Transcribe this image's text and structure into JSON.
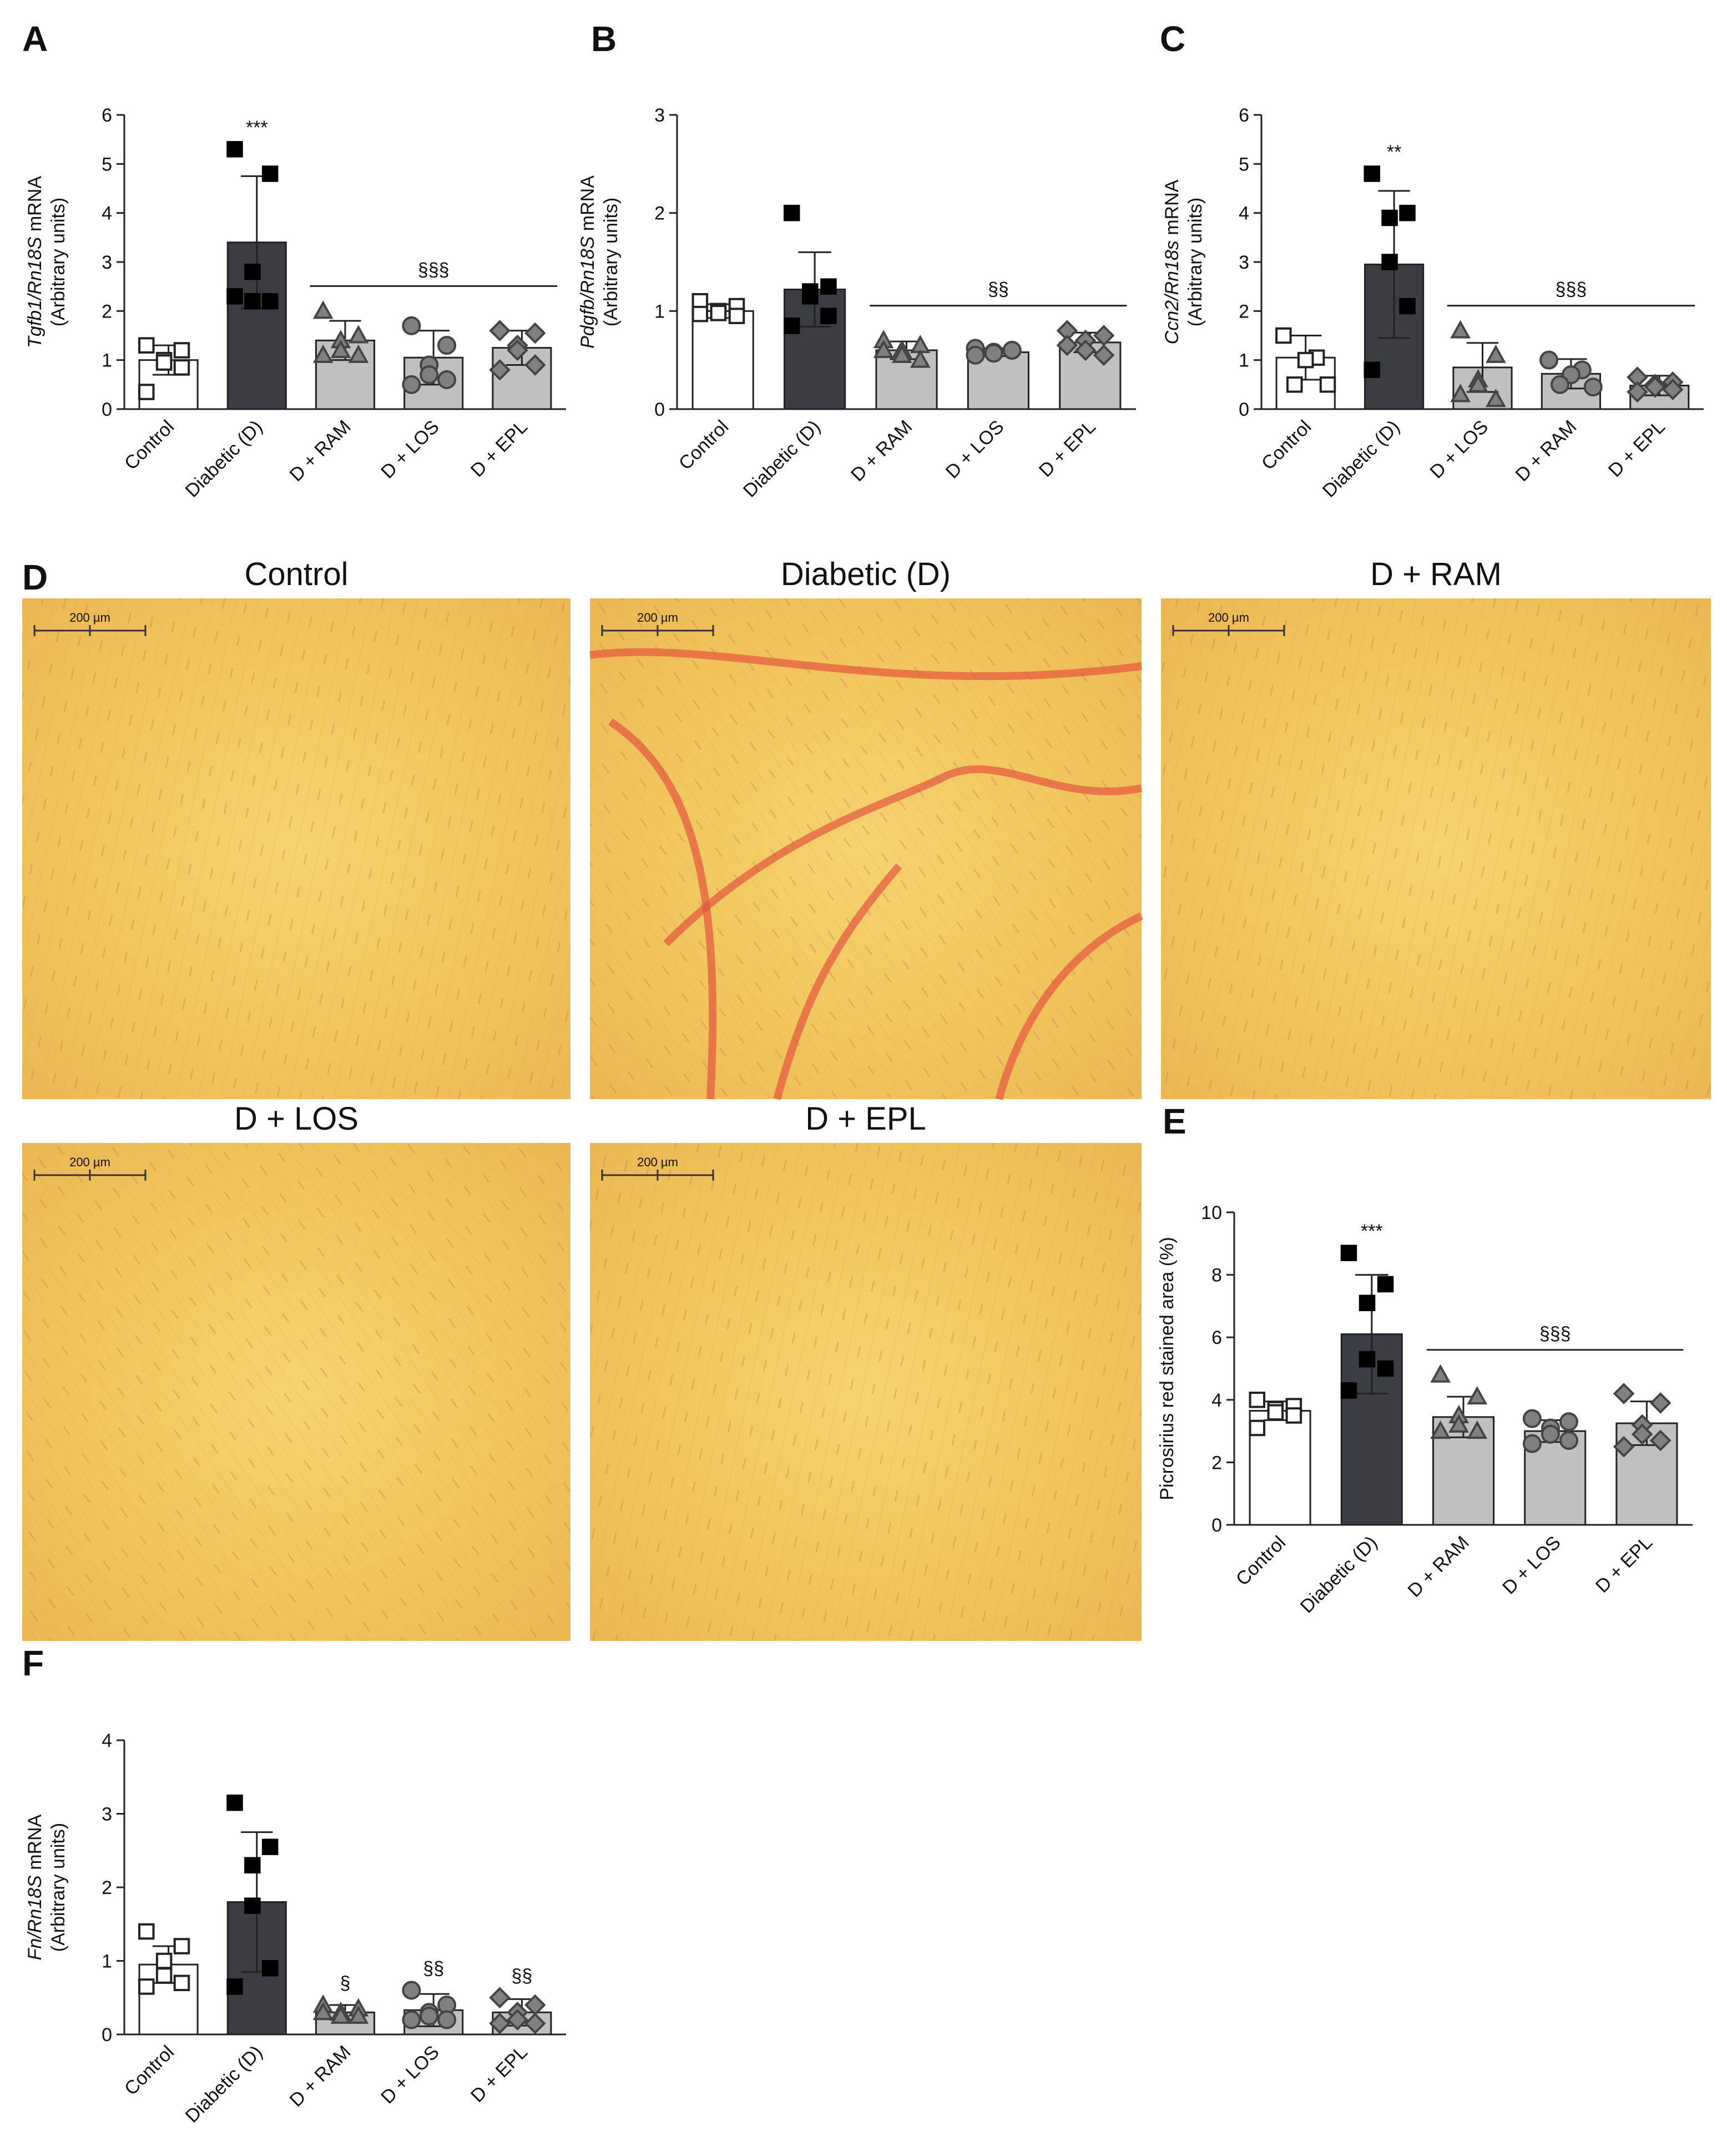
{
  "chart_data": [
    {
      "type": "bar",
      "panel": "A",
      "ylabel_italic": "Tgfb1/Rn18S",
      "ylabel": "mRNA",
      "ylabel2": "(Arbitrary units)",
      "categories": [
        "Control",
        "Diabetic (D)",
        "D + RAM",
        "D + LOS",
        "D + EPL"
      ],
      "values": [
        1.0,
        3.4,
        1.4,
        1.05,
        1.25
      ],
      "errors": [
        0.3,
        1.35,
        0.4,
        0.55,
        0.35
      ],
      "points": [
        [
          1.3,
          1.2,
          1.0,
          0.95,
          0.85,
          0.35
        ],
        [
          5.3,
          4.8,
          2.8,
          2.2,
          2.2,
          2.3
        ],
        [
          2.0,
          1.5,
          1.4,
          1.2,
          1.1,
          1.1
        ],
        [
          1.7,
          1.3,
          0.9,
          0.7,
          0.6,
          0.5
        ],
        [
          1.6,
          1.55,
          1.3,
          1.2,
          0.9,
          0.8
        ]
      ],
      "bar_colors": [
        "#ffffff",
        "#3a3d42",
        "#c0c0c0",
        "#c0c0c0",
        "#c0c0c0"
      ],
      "point_colors": [
        "#ffffff",
        "#000000",
        "#808080",
        "#808080",
        "#808080"
      ],
      "markers": [
        "square",
        "square",
        "triangle",
        "circle",
        "diamond"
      ],
      "ylim": [
        0,
        6
      ],
      "yticks": [
        0,
        1,
        2,
        3,
        4,
        5,
        6
      ],
      "annotations": [
        {
          "text": "***",
          "category": "Diabetic (D)"
        }
      ],
      "sig_lines": [
        {
          "text": "§§§",
          "from": "D + RAM",
          "to": "D + EPL"
        }
      ]
    },
    {
      "type": "bar",
      "panel": "B",
      "ylabel_italic": "Pdgfb/Rn18S",
      "ylabel": "mRNA",
      "ylabel2": "(Arbitrary units)",
      "categories": [
        "Control",
        "Diabetic (D)",
        "D + RAM",
        "D + LOS",
        "D + EPL"
      ],
      "values": [
        1.0,
        1.22,
        0.6,
        0.58,
        0.68
      ],
      "errors": [
        0.07,
        0.38,
        0.09,
        0.04,
        0.1
      ],
      "points": [
        [
          1.1,
          1.05,
          1.0,
          0.98,
          0.95,
          0.97
        ],
        [
          2.0,
          1.25,
          1.2,
          1.15,
          0.95,
          0.85
        ],
        [
          0.7,
          0.65,
          0.6,
          0.55,
          0.5,
          0.6
        ],
        [
          0.62,
          0.6,
          0.58,
          0.57,
          0.6,
          0.55
        ],
        [
          0.8,
          0.75,
          0.7,
          0.6,
          0.55,
          0.65
        ]
      ],
      "bar_colors": [
        "#ffffff",
        "#3a3d42",
        "#c0c0c0",
        "#c0c0c0",
        "#c0c0c0"
      ],
      "point_colors": [
        "#ffffff",
        "#000000",
        "#808080",
        "#808080",
        "#808080"
      ],
      "markers": [
        "square",
        "square",
        "triangle",
        "circle",
        "diamond"
      ],
      "ylim": [
        0,
        3
      ],
      "yticks": [
        0,
        1,
        2,
        3
      ],
      "annotations": [],
      "sig_lines": [
        {
          "text": "§§",
          "from": "D + RAM",
          "to": "D + EPL"
        }
      ]
    },
    {
      "type": "bar",
      "panel": "C",
      "ylabel_italic": "Ccn2/Rn18s",
      "ylabel": "mRNA",
      "ylabel2": "(Arbitrary units)",
      "categories": [
        "Control",
        "Diabetic (D)",
        "D + LOS",
        "D + RAM",
        "D + EPL"
      ],
      "values": [
        1.05,
        2.95,
        0.85,
        0.72,
        0.48
      ],
      "errors": [
        0.45,
        1.5,
        0.5,
        0.3,
        0.2
      ],
      "points": [
        [
          1.5,
          1.05,
          1.0,
          0.5,
          0.5
        ],
        [
          4.8,
          4.0,
          3.9,
          3.0,
          2.1,
          0.8
        ],
        [
          1.6,
          1.1,
          0.6,
          0.5,
          0.2,
          0.3
        ],
        [
          1.0,
          0.8,
          0.7,
          0.5,
          0.45
        ],
        [
          0.65,
          0.55,
          0.5,
          0.45,
          0.4,
          0.35
        ]
      ],
      "bar_colors": [
        "#ffffff",
        "#3a3d42",
        "#c0c0c0",
        "#c0c0c0",
        "#c0c0c0"
      ],
      "point_colors": [
        "#ffffff",
        "#000000",
        "#808080",
        "#808080",
        "#808080"
      ],
      "markers": [
        "square",
        "square",
        "triangle",
        "circle",
        "diamond"
      ],
      "ylim": [
        0,
        6
      ],
      "yticks": [
        0,
        1,
        2,
        3,
        4,
        5,
        6
      ],
      "annotations": [
        {
          "text": "**",
          "category": "Diabetic (D)"
        }
      ],
      "sig_lines": [
        {
          "text": "§§§",
          "from": "D + LOS",
          "to": "D + EPL"
        }
      ]
    },
    {
      "type": "bar",
      "panel": "E",
      "ylabel_italic": "",
      "ylabel": "Picrosirius red stained area (%)",
      "ylabel2": "",
      "categories": [
        "Control",
        "Diabetic (D)",
        "D + RAM",
        "D + LOS",
        "D + EPL"
      ],
      "values": [
        3.65,
        6.1,
        3.45,
        3.0,
        3.25
      ],
      "errors": [
        0.3,
        1.9,
        0.65,
        0.35,
        0.7
      ],
      "points": [
        [
          4.0,
          3.8,
          3.7,
          3.6,
          3.5,
          3.1
        ],
        [
          8.7,
          7.7,
          7.1,
          5.3,
          5.0,
          4.3
        ],
        [
          4.8,
          4.1,
          3.5,
          3.2,
          3.0,
          3.0
        ],
        [
          3.4,
          3.3,
          3.1,
          2.9,
          2.7,
          2.6
        ],
        [
          4.2,
          3.9,
          3.2,
          2.9,
          2.7,
          2.5
        ]
      ],
      "bar_colors": [
        "#ffffff",
        "#3a3d42",
        "#c0c0c0",
        "#c0c0c0",
        "#c0c0c0"
      ],
      "point_colors": [
        "#ffffff",
        "#000000",
        "#808080",
        "#808080",
        "#808080"
      ],
      "markers": [
        "square",
        "square",
        "triangle",
        "circle",
        "diamond"
      ],
      "ylim": [
        0,
        10
      ],
      "yticks": [
        0,
        2,
        4,
        6,
        8,
        10
      ],
      "annotations": [
        {
          "text": "***",
          "category": "Diabetic (D)"
        }
      ],
      "sig_lines": [
        {
          "text": "§§§",
          "from": "D + RAM",
          "to": "D + EPL"
        }
      ]
    },
    {
      "type": "bar",
      "panel": "F",
      "ylabel_italic": "Fn/Rn18S",
      "ylabel": "mRNA",
      "ylabel2": "(Arbitrary units)",
      "categories": [
        "Control",
        "Diabetic (D)",
        "D + RAM",
        "D + LOS",
        "D + EPL"
      ],
      "values": [
        0.95,
        1.8,
        0.3,
        0.33,
        0.3
      ],
      "errors": [
        0.25,
        0.95,
        0.1,
        0.22,
        0.18
      ],
      "points": [
        [
          1.4,
          1.2,
          1.0,
          0.8,
          0.7,
          0.65
        ],
        [
          3.15,
          2.55,
          2.3,
          1.75,
          0.9,
          0.65
        ],
        [
          0.4,
          0.35,
          0.3,
          0.25,
          0.25,
          0.3
        ],
        [
          0.6,
          0.4,
          0.3,
          0.25,
          0.2,
          0.2
        ],
        [
          0.5,
          0.4,
          0.3,
          0.2,
          0.15,
          0.15
        ]
      ],
      "bar_colors": [
        "#ffffff",
        "#3a3d42",
        "#c0c0c0",
        "#c0c0c0",
        "#c0c0c0"
      ],
      "point_colors": [
        "#ffffff",
        "#000000",
        "#808080",
        "#808080",
        "#808080"
      ],
      "markers": [
        "square",
        "square",
        "triangle",
        "circle",
        "diamond"
      ],
      "ylim": [
        0,
        4
      ],
      "yticks": [
        0,
        1,
        2,
        3,
        4
      ],
      "annotations": [
        {
          "text": "§",
          "category": "D + RAM"
        },
        {
          "text": "§§",
          "category": "D + LOS"
        },
        {
          "text": "§§",
          "category": "D + EPL"
        }
      ],
      "sig_lines": []
    }
  ],
  "micrographs": {
    "panel": "D",
    "images": [
      {
        "label": "Control",
        "scale_bar": "200 µm"
      },
      {
        "label": "Diabetic (D)",
        "scale_bar": "200 µm"
      },
      {
        "label": "D + RAM",
        "scale_bar": "200 µm"
      },
      {
        "label": "D + LOS",
        "scale_bar": "200 µm"
      },
      {
        "label": "D + EPL",
        "scale_bar": "200 µm"
      }
    ]
  }
}
